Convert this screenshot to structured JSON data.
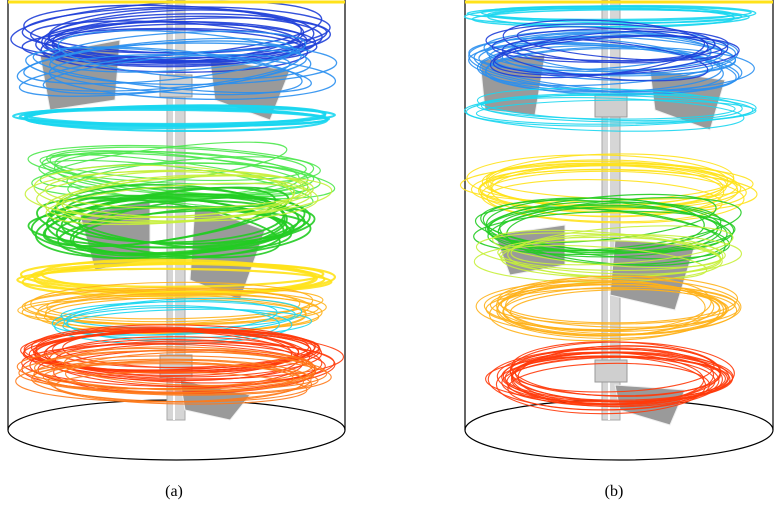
{
  "figure": {
    "panels": [
      {
        "id": "a",
        "caption": "(a)"
      },
      {
        "id": "b",
        "caption": "(b)"
      }
    ],
    "streamline_palette": [
      "#1f3fd8",
      "#2a8ff0",
      "#19d6f0",
      "#4ee84e",
      "#22cc22",
      "#c6f03a",
      "#ffe21a",
      "#ffb11a",
      "#ff7a1a",
      "#ff3a0a"
    ],
    "vessel_color": "#000000",
    "impeller_color": "#9a9a9a",
    "shaft_color": "#d6d6d6"
  }
}
